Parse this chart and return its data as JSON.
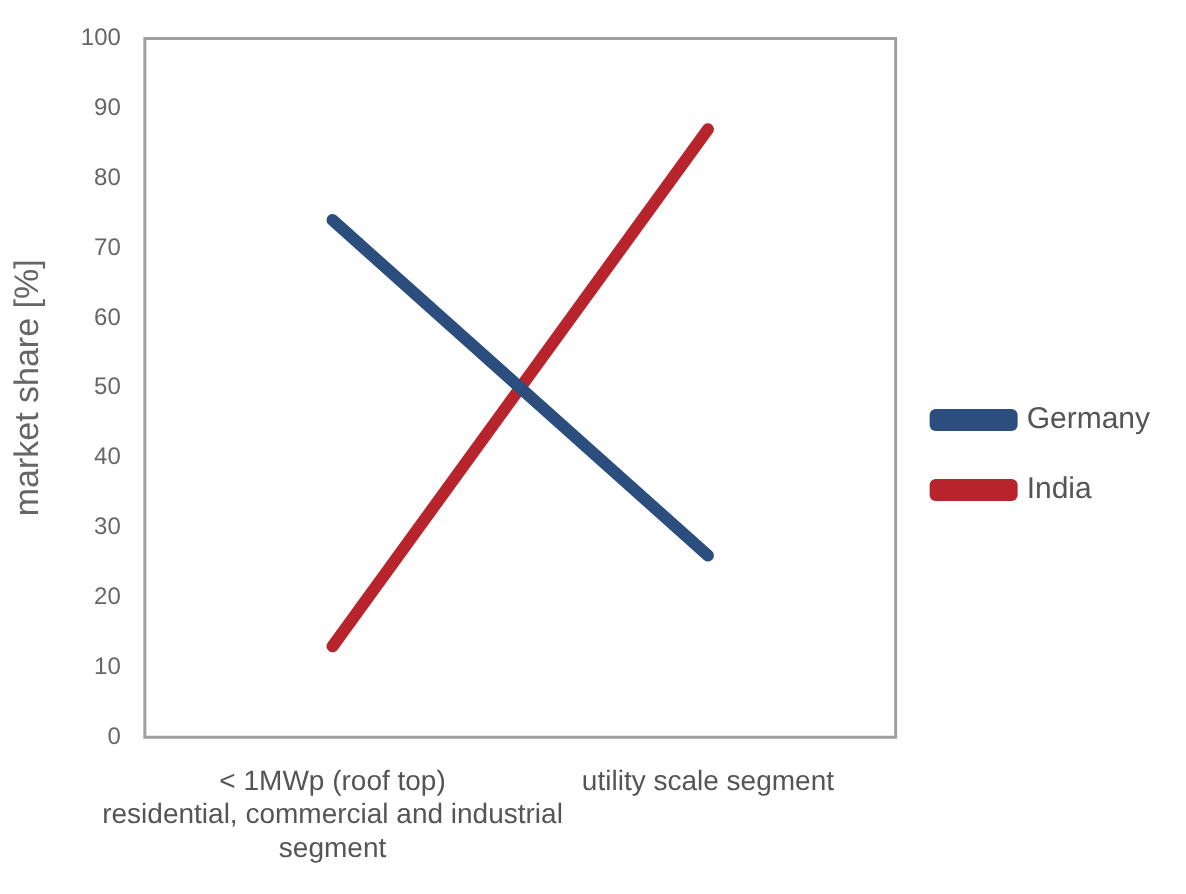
{
  "chart_data": {
    "type": "line",
    "ylabel": "market share [%]",
    "categories": [
      "< 1MWp (roof top) residential, commercial and industrial segment",
      "utility scale segment"
    ],
    "series": [
      {
        "name": "Germany",
        "color": "#2c4e7e",
        "values": [
          74,
          26
        ]
      },
      {
        "name": "India",
        "color": "#b7242c",
        "values": [
          13,
          87
        ]
      }
    ],
    "ylim": [
      0,
      100
    ],
    "yticks": [
      0,
      10,
      20,
      30,
      40,
      50,
      60,
      70,
      80,
      90,
      100
    ],
    "grid": false,
    "legend": "right",
    "marker": "none"
  }
}
